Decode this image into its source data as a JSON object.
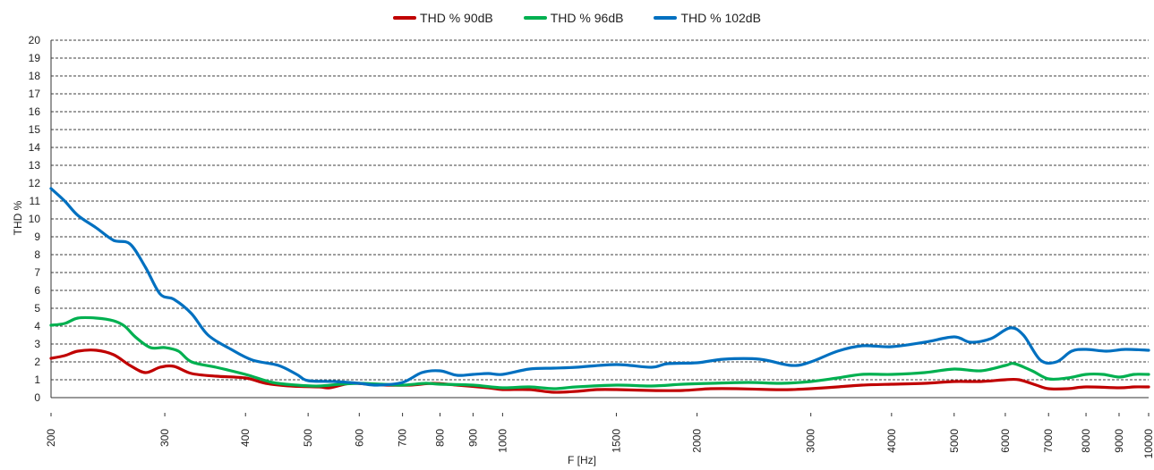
{
  "chart_data": {
    "type": "line",
    "title": "",
    "xlabel": "F [Hz]",
    "ylabel": "THD %",
    "xscale": "log",
    "xlim": [
      200,
      10000
    ],
    "ylim": [
      0,
      20
    ],
    "x_ticks": [
      200,
      300,
      400,
      500,
      600,
      700,
      800,
      900,
      1000,
      1500,
      2000,
      3000,
      4000,
      5000,
      6000,
      7000,
      8000,
      9000,
      10000
    ],
    "y_ticks": [
      0,
      1,
      2,
      3,
      4,
      5,
      6,
      7,
      8,
      9,
      10,
      11,
      12,
      13,
      14,
      15,
      16,
      17,
      18,
      19,
      20
    ],
    "grid": "horizontal dashed",
    "legend_position": "top-center",
    "series": [
      {
        "name": "THD % 90dB",
        "color": "#c00000",
        "points": [
          [
            200,
            2.2
          ],
          [
            210,
            2.35
          ],
          [
            220,
            2.6
          ],
          [
            235,
            2.65
          ],
          [
            250,
            2.4
          ],
          [
            265,
            1.8
          ],
          [
            280,
            1.4
          ],
          [
            295,
            1.7
          ],
          [
            310,
            1.75
          ],
          [
            330,
            1.35
          ],
          [
            360,
            1.2
          ],
          [
            400,
            1.1
          ],
          [
            430,
            0.8
          ],
          [
            470,
            0.65
          ],
          [
            520,
            0.6
          ],
          [
            540,
            0.55
          ],
          [
            580,
            0.8
          ],
          [
            620,
            0.75
          ],
          [
            660,
            0.7
          ],
          [
            720,
            0.7
          ],
          [
            780,
            0.8
          ],
          [
            850,
            0.7
          ],
          [
            950,
            0.55
          ],
          [
            1000,
            0.45
          ],
          [
            1100,
            0.45
          ],
          [
            1200,
            0.3
          ],
          [
            1300,
            0.35
          ],
          [
            1400,
            0.45
          ],
          [
            1500,
            0.45
          ],
          [
            1700,
            0.4
          ],
          [
            1900,
            0.4
          ],
          [
            2100,
            0.5
          ],
          [
            2300,
            0.5
          ],
          [
            2600,
            0.45
          ],
          [
            2800,
            0.45
          ],
          [
            3000,
            0.5
          ],
          [
            3300,
            0.6
          ],
          [
            3600,
            0.7
          ],
          [
            4000,
            0.75
          ],
          [
            4500,
            0.8
          ],
          [
            5000,
            0.9
          ],
          [
            5500,
            0.9
          ],
          [
            6000,
            1.0
          ],
          [
            6300,
            1.0
          ],
          [
            6700,
            0.7
          ],
          [
            7000,
            0.5
          ],
          [
            7500,
            0.5
          ],
          [
            8000,
            0.6
          ],
          [
            9000,
            0.55
          ],
          [
            9500,
            0.6
          ],
          [
            10000,
            0.6
          ]
        ]
      },
      {
        "name": "THD % 96dB",
        "color": "#00b050",
        "points": [
          [
            200,
            4.05
          ],
          [
            210,
            4.15
          ],
          [
            220,
            4.45
          ],
          [
            235,
            4.45
          ],
          [
            250,
            4.3
          ],
          [
            260,
            4.0
          ],
          [
            270,
            3.4
          ],
          [
            285,
            2.8
          ],
          [
            300,
            2.8
          ],
          [
            315,
            2.6
          ],
          [
            330,
            2.0
          ],
          [
            360,
            1.7
          ],
          [
            400,
            1.3
          ],
          [
            440,
            0.85
          ],
          [
            480,
            0.7
          ],
          [
            520,
            0.65
          ],
          [
            560,
            0.75
          ],
          [
            600,
            0.8
          ],
          [
            650,
            0.75
          ],
          [
            700,
            0.7
          ],
          [
            760,
            0.8
          ],
          [
            800,
            0.75
          ],
          [
            900,
            0.7
          ],
          [
            1000,
            0.55
          ],
          [
            1100,
            0.6
          ],
          [
            1200,
            0.5
          ],
          [
            1300,
            0.6
          ],
          [
            1500,
            0.7
          ],
          [
            1700,
            0.65
          ],
          [
            1900,
            0.75
          ],
          [
            2100,
            0.8
          ],
          [
            2400,
            0.85
          ],
          [
            2700,
            0.8
          ],
          [
            3000,
            0.9
          ],
          [
            3300,
            1.1
          ],
          [
            3600,
            1.3
          ],
          [
            4000,
            1.3
          ],
          [
            4500,
            1.4
          ],
          [
            5000,
            1.6
          ],
          [
            5500,
            1.5
          ],
          [
            6000,
            1.8
          ],
          [
            6200,
            1.9
          ],
          [
            6600,
            1.5
          ],
          [
            7000,
            1.05
          ],
          [
            7500,
            1.1
          ],
          [
            8000,
            1.3
          ],
          [
            8500,
            1.3
          ],
          [
            9000,
            1.15
          ],
          [
            9500,
            1.3
          ],
          [
            10000,
            1.3
          ]
        ]
      },
      {
        "name": "THD % 102dB",
        "color": "#0070c0",
        "points": [
          [
            200,
            11.7
          ],
          [
            210,
            11.0
          ],
          [
            220,
            10.2
          ],
          [
            235,
            9.5
          ],
          [
            250,
            8.8
          ],
          [
            265,
            8.6
          ],
          [
            280,
            7.3
          ],
          [
            295,
            5.8
          ],
          [
            310,
            5.5
          ],
          [
            330,
            4.7
          ],
          [
            350,
            3.5
          ],
          [
            380,
            2.7
          ],
          [
            410,
            2.1
          ],
          [
            450,
            1.8
          ],
          [
            480,
            1.3
          ],
          [
            500,
            0.95
          ],
          [
            550,
            0.9
          ],
          [
            600,
            0.8
          ],
          [
            640,
            0.7
          ],
          [
            700,
            0.85
          ],
          [
            750,
            1.4
          ],
          [
            800,
            1.5
          ],
          [
            850,
            1.25
          ],
          [
            900,
            1.3
          ],
          [
            950,
            1.35
          ],
          [
            1000,
            1.3
          ],
          [
            1100,
            1.6
          ],
          [
            1200,
            1.65
          ],
          [
            1300,
            1.7
          ],
          [
            1500,
            1.85
          ],
          [
            1700,
            1.7
          ],
          [
            1800,
            1.9
          ],
          [
            2000,
            1.95
          ],
          [
            2200,
            2.15
          ],
          [
            2500,
            2.15
          ],
          [
            2800,
            1.8
          ],
          [
            3000,
            2.0
          ],
          [
            3300,
            2.6
          ],
          [
            3600,
            2.9
          ],
          [
            4000,
            2.85
          ],
          [
            4500,
            3.1
          ],
          [
            5000,
            3.4
          ],
          [
            5300,
            3.1
          ],
          [
            5700,
            3.3
          ],
          [
            6100,
            3.9
          ],
          [
            6400,
            3.5
          ],
          [
            6800,
            2.1
          ],
          [
            7200,
            2.0
          ],
          [
            7600,
            2.6
          ],
          [
            8000,
            2.7
          ],
          [
            8600,
            2.6
          ],
          [
            9200,
            2.7
          ],
          [
            10000,
            2.65
          ]
        ]
      }
    ]
  }
}
